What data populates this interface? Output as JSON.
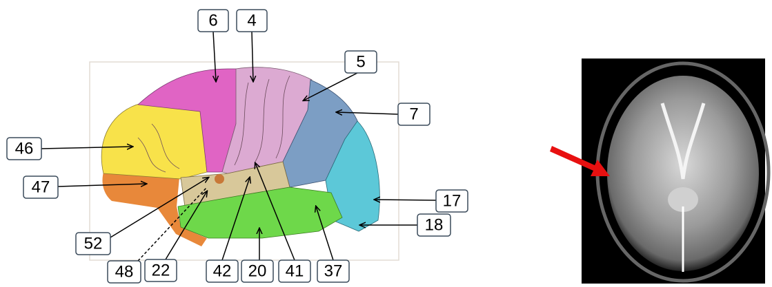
{
  "labels": [
    "6",
    "4",
    "5",
    "7",
    "46",
    "47",
    "17",
    "18",
    "52",
    "48",
    "22",
    "42",
    "20",
    "41",
    "37"
  ]
}
